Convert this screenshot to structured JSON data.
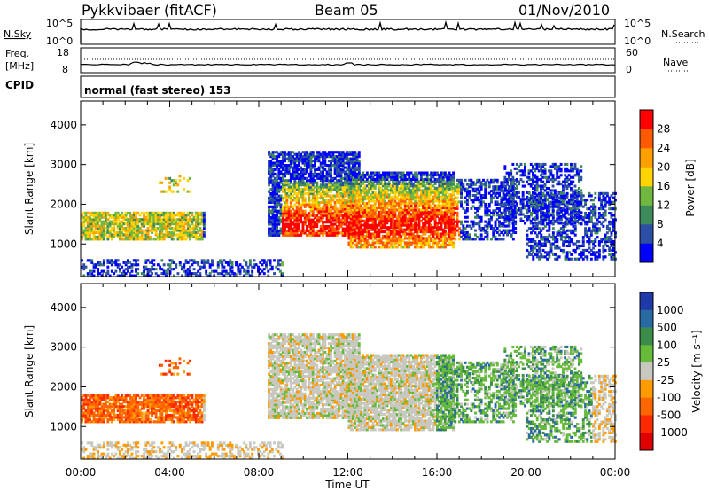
{
  "header": {
    "station": "Pykkvibaer (fitACF)",
    "beam": "Beam 05",
    "date": "01/Nov/2010"
  },
  "top_strips": {
    "nsky_label": "N.Sky",
    "nsky_ticks": [
      "10^5",
      "10^0"
    ],
    "nsearch_label": "N.Search",
    "nsearch_ticks": [
      "10^5",
      "10^0"
    ],
    "freq_label_1": "Freq.",
    "freq_label_2": "[MHz]",
    "freq_ticks": [
      "18",
      "8"
    ],
    "nave_label": "Nave",
    "nave_ticks": [
      "60",
      "0"
    ],
    "cpid_label": "CPID",
    "cpid_text": "normal (fast stereo) 153"
  },
  "colors": {
    "power_scale": [
      "#0000ff",
      "#2d4ea5",
      "#3f8a5a",
      "#70b83f",
      "#ffd400",
      "#ffa000",
      "#ff5a00",
      "#ff0000"
    ],
    "velocity_scale": [
      "#1e3aa8",
      "#2a6aa3",
      "#3c8c4a",
      "#66bb3a",
      "#c8c8c0",
      "#ff9a00",
      "#ff6600",
      "#ff2a00",
      "#e00000"
    ]
  },
  "chart_data": [
    {
      "type": "heatmap",
      "title": "Power",
      "xlabel": "Time UT",
      "ylabel": "Slant Range [km]",
      "x_ticks": [
        "00:00",
        "04:00",
        "08:00",
        "12:00",
        "16:00",
        "20:00",
        "00:00"
      ],
      "xlim_hours": [
        0,
        24
      ],
      "y_ticks": [
        "1000",
        "2000",
        "3000",
        "4000"
      ],
      "ylim_km": [
        180,
        4600
      ],
      "colorbar_label": "Power [dB]",
      "colorbar_ticks": [
        "4",
        "8",
        "12",
        "16",
        "20",
        "24",
        "28"
      ],
      "colorbar_range": [
        0,
        32
      ]
    },
    {
      "type": "heatmap",
      "title": "Velocity",
      "xlabel": "Time UT",
      "ylabel": "Slant Range [km]",
      "x_ticks": [
        "00:00",
        "04:00",
        "08:00",
        "12:00",
        "16:00",
        "20:00",
        "00:00"
      ],
      "xlim_hours": [
        0,
        24
      ],
      "y_ticks": [
        "1000",
        "2000",
        "3000",
        "4000"
      ],
      "ylim_km": [
        180,
        4600
      ],
      "colorbar_label": "Velocity [m s⁻¹]",
      "colorbar_ticks": [
        "1000",
        "500",
        "100",
        "25",
        "-25",
        "-100",
        "-500",
        "-1000"
      ]
    }
  ]
}
